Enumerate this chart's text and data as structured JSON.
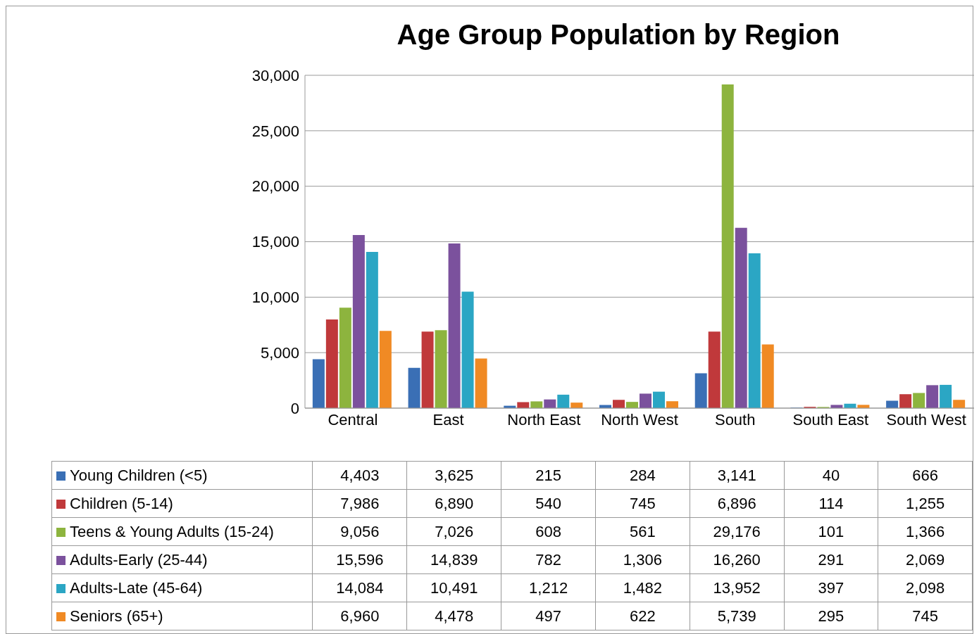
{
  "chart_data": {
    "type": "bar",
    "title": "Age Group Population by Region",
    "categories": [
      "Central",
      "East",
      "North East",
      "North West",
      "South",
      "South East",
      "South West"
    ],
    "series": [
      {
        "name": "Young Children (<5)",
        "color": "#3a6fb5",
        "values": [
          4403,
          3625,
          215,
          284,
          3141,
          40,
          666
        ],
        "value_labels": [
          "4,403",
          "3,625",
          "215",
          "284",
          "3,141",
          "40",
          "666"
        ]
      },
      {
        "name": "Children (5-14)",
        "color": "#c0393b",
        "values": [
          7986,
          6890,
          540,
          745,
          6896,
          114,
          1255
        ],
        "value_labels": [
          "7,986",
          "6,890",
          "540",
          "745",
          "6,896",
          "114",
          "1,255"
        ]
      },
      {
        "name": "Teens & Young Adults (15-24)",
        "color": "#8db43e",
        "values": [
          9056,
          7026,
          608,
          561,
          29176,
          101,
          1366
        ],
        "value_labels": [
          "9,056",
          "7,026",
          "608",
          "561",
          "29,176",
          "101",
          "1,366"
        ]
      },
      {
        "name": "Adults-Early (25-44)",
        "color": "#7b519d",
        "values": [
          15596,
          14839,
          782,
          1306,
          16260,
          291,
          2069
        ],
        "value_labels": [
          "15,596",
          "14,839",
          "782",
          "1,306",
          "16,260",
          "291",
          "2,069"
        ]
      },
      {
        "name": "Adults-Late (45-64)",
        "color": "#2ba6c4",
        "values": [
          14084,
          10491,
          1212,
          1482,
          13952,
          397,
          2098
        ],
        "value_labels": [
          "14,084",
          "10,491",
          "1,212",
          "1,482",
          "13,952",
          "397",
          "2,098"
        ]
      },
      {
        "name": "Seniors (65+)",
        "color": "#f08a24",
        "values": [
          6960,
          4478,
          497,
          622,
          5739,
          295,
          745
        ],
        "value_labels": [
          "6,960",
          "4,478",
          "497",
          "622",
          "5,739",
          "295",
          "745"
        ]
      }
    ],
    "ylim": [
      0,
      30000
    ],
    "yticks": [
      0,
      {
        "value": 5000,
        "label": "5,000"
      },
      {
        "value": 10000,
        "label": "10,000"
      },
      {
        "value": 15000,
        "label": "15,000"
      },
      {
        "value": 20000,
        "label": "20,000"
      },
      {
        "value": 25000,
        "label": "25,000"
      },
      {
        "value": 30000,
        "label": "30,000"
      }
    ],
    "grid": "y",
    "legend": "bottom"
  }
}
